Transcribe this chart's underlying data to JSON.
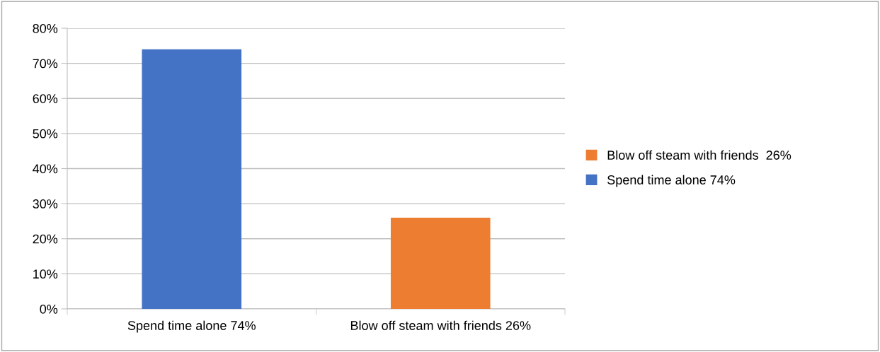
{
  "chart_data": {
    "type": "bar",
    "stacked": true,
    "categories": [
      "Spend time alone 74%",
      "Blow off steam with friends 26%"
    ],
    "series": [
      {
        "name": "Spend time alone 74%",
        "color": "#4472c4",
        "values": [
          74,
          null
        ]
      },
      {
        "name": "Blow off steam with friends  26%",
        "color": "#ed7d31",
        "values": [
          null,
          26
        ]
      }
    ],
    "ylim": [
      0,
      80
    ],
    "yticks": [
      {
        "value": 0,
        "label": "0%"
      },
      {
        "value": 10,
        "label": "10%"
      },
      {
        "value": 20,
        "label": "20%"
      },
      {
        "value": 30,
        "label": "30%"
      },
      {
        "value": 40,
        "label": "40%"
      },
      {
        "value": 50,
        "label": "50%"
      },
      {
        "value": 60,
        "label": "60%"
      },
      {
        "value": 70,
        "label": "70%"
      },
      {
        "value": 80,
        "label": "80%"
      }
    ],
    "grid": "y",
    "legend": "right"
  }
}
